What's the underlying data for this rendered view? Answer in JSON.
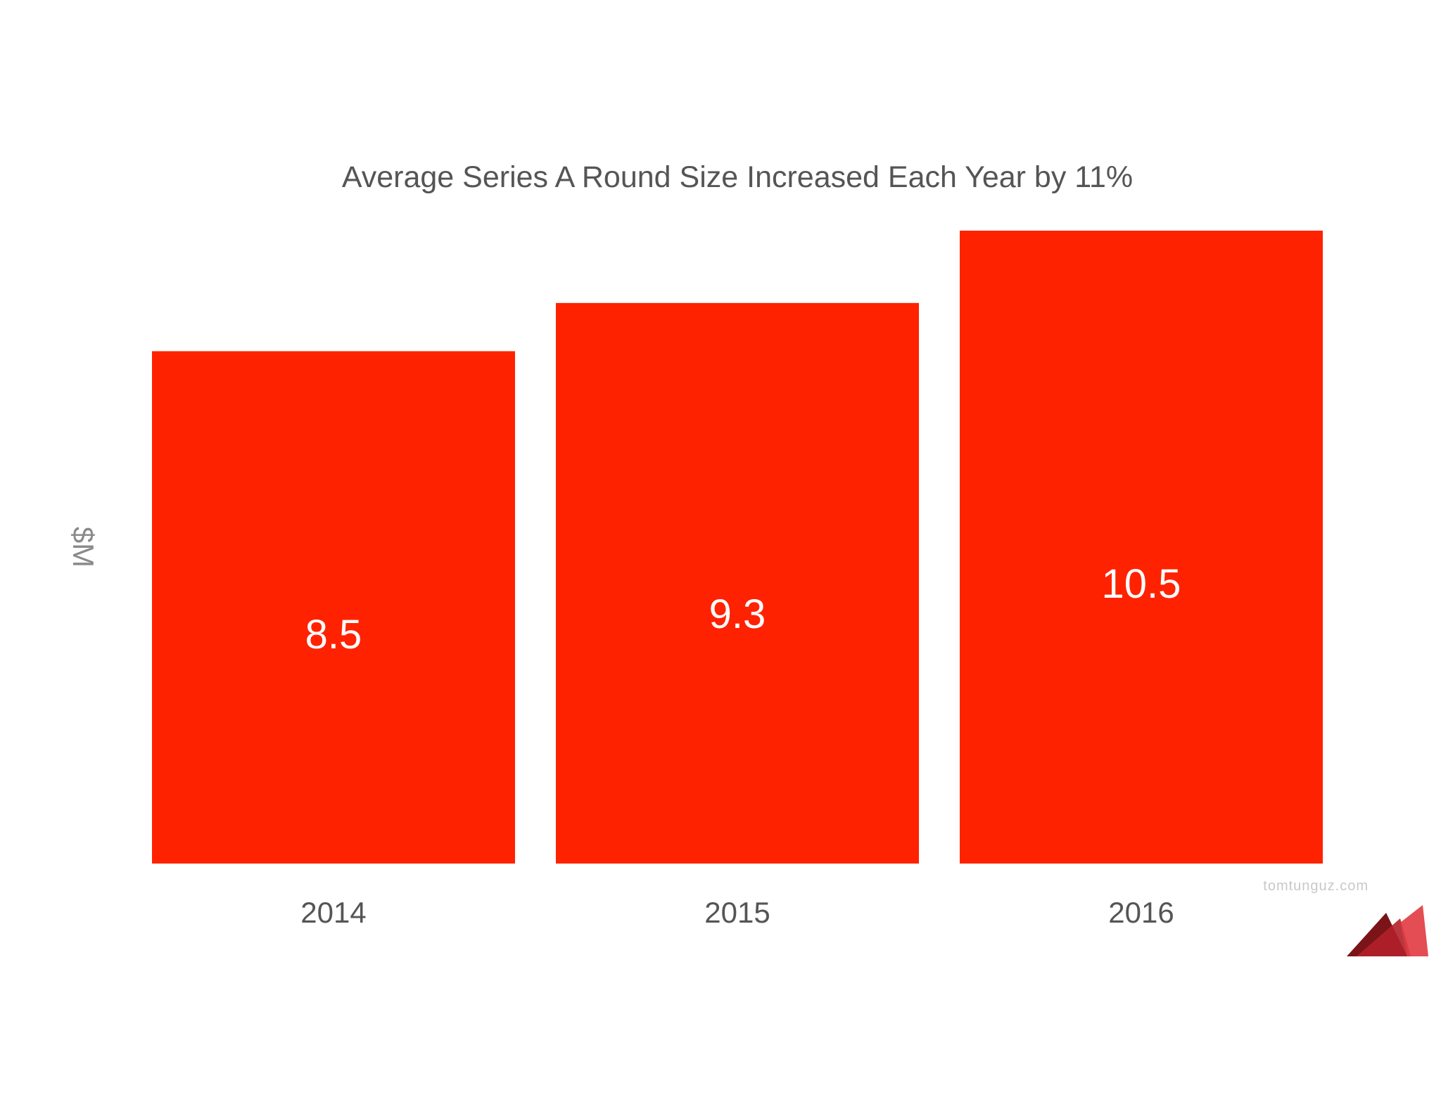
{
  "chart_data": {
    "type": "bar",
    "title": "Average Series A Round Size Increased Each Year by 11%",
    "ylabel": "$M",
    "xlabel": "",
    "categories": [
      "2014",
      "2015",
      "2016"
    ],
    "values": [
      8.5,
      9.3,
      10.5
    ],
    "value_labels": [
      "8.5",
      "9.3",
      "10.5"
    ],
    "ylim": [
      0,
      10.5
    ],
    "grid": false,
    "legend": "none",
    "bar_color": "#ff2200"
  },
  "watermark": {
    "text": "tomtunguz.com"
  },
  "logo": {
    "name": "mountain-logo-icon",
    "colors": [
      "#7a1418",
      "#b3202a",
      "#e03a40"
    ]
  }
}
